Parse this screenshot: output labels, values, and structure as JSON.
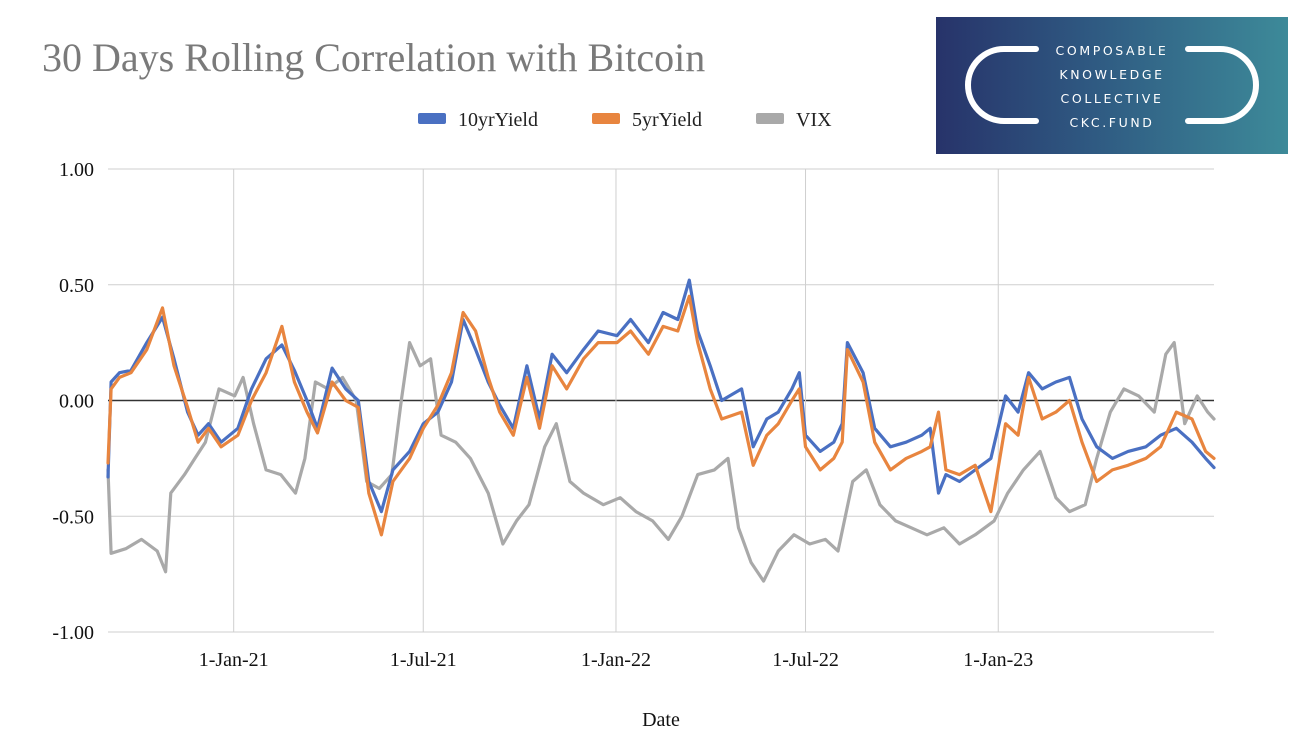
{
  "logo": {
    "lines": [
      "COMPOSABLE",
      "KNOWLEDGE",
      "COLLECTIVE",
      "CKC.FUND"
    ],
    "colors": [
      "#27336a",
      "#3d8a99"
    ]
  },
  "chart_data": {
    "type": "line",
    "title": "30 Days Rolling Correlation with Bitcoin",
    "xlabel": "Date",
    "ylabel": "",
    "ylim": [
      -1.0,
      1.0
    ],
    "yticks": [
      "1.00",
      "0.50",
      "0.00",
      "-0.50",
      "-1.00"
    ],
    "xlim": [
      "2020-09-03",
      "2023-07-26"
    ],
    "xticks": [
      {
        "date": "2021-01-01",
        "label": "1-Jan-21"
      },
      {
        "date": "2021-07-01",
        "label": "1-Jul-21"
      },
      {
        "date": "2022-01-01",
        "label": "1-Jan-22"
      },
      {
        "date": "2022-07-01",
        "label": "1-Jul-22"
      },
      {
        "date": "2023-01-01",
        "label": "1-Jan-23"
      }
    ],
    "grid": true,
    "legend_position": "top-center",
    "series": [
      {
        "name": "10yrYield",
        "color": "#4a70c2",
        "data": [
          [
            "2020-09-03",
            -0.33
          ],
          [
            "2020-09-06",
            0.08
          ],
          [
            "2020-09-14",
            0.12
          ],
          [
            "2020-09-25",
            0.13
          ],
          [
            "2020-10-10",
            0.25
          ],
          [
            "2020-10-25",
            0.36
          ],
          [
            "2020-11-05",
            0.18
          ],
          [
            "2020-11-18",
            -0.05
          ],
          [
            "2020-11-28",
            -0.15
          ],
          [
            "2020-12-08",
            -0.1
          ],
          [
            "2020-12-20",
            -0.18
          ],
          [
            "2021-01-05",
            -0.12
          ],
          [
            "2021-01-18",
            0.05
          ],
          [
            "2021-02-01",
            0.18
          ],
          [
            "2021-02-16",
            0.24
          ],
          [
            "2021-02-28",
            0.13
          ],
          [
            "2021-03-12",
            0.0
          ],
          [
            "2021-03-22",
            -0.12
          ],
          [
            "2021-04-05",
            0.14
          ],
          [
            "2021-04-18",
            0.05
          ],
          [
            "2021-04-30",
            0.0
          ],
          [
            "2021-05-10",
            -0.35
          ],
          [
            "2021-05-22",
            -0.48
          ],
          [
            "2021-06-02",
            -0.3
          ],
          [
            "2021-06-18",
            -0.22
          ],
          [
            "2021-07-01",
            -0.1
          ],
          [
            "2021-07-15",
            -0.05
          ],
          [
            "2021-07-28",
            0.08
          ],
          [
            "2021-08-08",
            0.35
          ],
          [
            "2021-08-20",
            0.22
          ],
          [
            "2021-09-01",
            0.08
          ],
          [
            "2021-09-12",
            -0.02
          ],
          [
            "2021-09-25",
            -0.12
          ],
          [
            "2021-10-08",
            0.15
          ],
          [
            "2021-10-20",
            -0.08
          ],
          [
            "2021-11-01",
            0.2
          ],
          [
            "2021-11-15",
            0.12
          ],
          [
            "2021-12-01",
            0.22
          ],
          [
            "2021-12-15",
            0.3
          ],
          [
            "2022-01-02",
            0.28
          ],
          [
            "2022-01-15",
            0.35
          ],
          [
            "2022-02-01",
            0.25
          ],
          [
            "2022-02-15",
            0.38
          ],
          [
            "2022-03-01",
            0.35
          ],
          [
            "2022-03-12",
            0.52
          ],
          [
            "2022-03-20",
            0.3
          ],
          [
            "2022-04-01",
            0.15
          ],
          [
            "2022-04-12",
            0.0
          ],
          [
            "2022-05-01",
            0.05
          ],
          [
            "2022-05-12",
            -0.2
          ],
          [
            "2022-05-25",
            -0.08
          ],
          [
            "2022-06-05",
            -0.05
          ],
          [
            "2022-06-18",
            0.05
          ],
          [
            "2022-06-25",
            0.12
          ],
          [
            "2022-07-01",
            -0.15
          ],
          [
            "2022-07-15",
            -0.22
          ],
          [
            "2022-07-28",
            -0.18
          ],
          [
            "2022-08-05",
            -0.1
          ],
          [
            "2022-08-10",
            0.25
          ],
          [
            "2022-08-25",
            0.12
          ],
          [
            "2022-09-05",
            -0.12
          ],
          [
            "2022-09-20",
            -0.2
          ],
          [
            "2022-10-05",
            -0.18
          ],
          [
            "2022-10-20",
            -0.15
          ],
          [
            "2022-10-28",
            -0.12
          ],
          [
            "2022-11-05",
            -0.4
          ],
          [
            "2022-11-12",
            -0.32
          ],
          [
            "2022-11-25",
            -0.35
          ],
          [
            "2022-12-10",
            -0.3
          ],
          [
            "2022-12-25",
            -0.25
          ],
          [
            "2023-01-08",
            0.02
          ],
          [
            "2023-01-20",
            -0.05
          ],
          [
            "2023-01-30",
            0.12
          ],
          [
            "2023-02-12",
            0.05
          ],
          [
            "2023-02-25",
            0.08
          ],
          [
            "2023-03-10",
            0.1
          ],
          [
            "2023-03-22",
            -0.08
          ],
          [
            "2023-04-05",
            -0.2
          ],
          [
            "2023-04-20",
            -0.25
          ],
          [
            "2023-05-05",
            -0.22
          ],
          [
            "2023-05-22",
            -0.2
          ],
          [
            "2023-06-05",
            -0.15
          ],
          [
            "2023-06-20",
            -0.12
          ],
          [
            "2023-07-05",
            -0.18
          ],
          [
            "2023-07-18",
            -0.25
          ],
          [
            "2023-07-26",
            -0.29
          ]
        ]
      },
      {
        "name": "5yrYield",
        "color": "#e8853f",
        "data": [
          [
            "2020-09-03",
            -0.27
          ],
          [
            "2020-09-06",
            0.05
          ],
          [
            "2020-09-14",
            0.1
          ],
          [
            "2020-09-25",
            0.12
          ],
          [
            "2020-10-10",
            0.22
          ],
          [
            "2020-10-25",
            0.4
          ],
          [
            "2020-11-05",
            0.15
          ],
          [
            "2020-11-18",
            -0.03
          ],
          [
            "2020-11-28",
            -0.18
          ],
          [
            "2020-12-08",
            -0.12
          ],
          [
            "2020-12-20",
            -0.2
          ],
          [
            "2021-01-05",
            -0.15
          ],
          [
            "2021-01-18",
            0.0
          ],
          [
            "2021-02-01",
            0.12
          ],
          [
            "2021-02-16",
            0.32
          ],
          [
            "2021-02-28",
            0.08
          ],
          [
            "2021-03-12",
            -0.05
          ],
          [
            "2021-03-22",
            -0.14
          ],
          [
            "2021-04-05",
            0.08
          ],
          [
            "2021-04-18",
            0.0
          ],
          [
            "2021-04-30",
            -0.03
          ],
          [
            "2021-05-10",
            -0.4
          ],
          [
            "2021-05-22",
            -0.58
          ],
          [
            "2021-06-02",
            -0.35
          ],
          [
            "2021-06-18",
            -0.25
          ],
          [
            "2021-07-01",
            -0.12
          ],
          [
            "2021-07-15",
            -0.02
          ],
          [
            "2021-07-28",
            0.12
          ],
          [
            "2021-08-08",
            0.38
          ],
          [
            "2021-08-20",
            0.3
          ],
          [
            "2021-09-01",
            0.1
          ],
          [
            "2021-09-12",
            -0.05
          ],
          [
            "2021-09-25",
            -0.15
          ],
          [
            "2021-10-08",
            0.1
          ],
          [
            "2021-10-20",
            -0.12
          ],
          [
            "2021-11-01",
            0.15
          ],
          [
            "2021-11-15",
            0.05
          ],
          [
            "2021-12-01",
            0.18
          ],
          [
            "2021-12-15",
            0.25
          ],
          [
            "2022-01-02",
            0.25
          ],
          [
            "2022-01-15",
            0.3
          ],
          [
            "2022-02-01",
            0.2
          ],
          [
            "2022-02-15",
            0.32
          ],
          [
            "2022-03-01",
            0.3
          ],
          [
            "2022-03-12",
            0.45
          ],
          [
            "2022-03-20",
            0.25
          ],
          [
            "2022-04-01",
            0.05
          ],
          [
            "2022-04-12",
            -0.08
          ],
          [
            "2022-05-01",
            -0.05
          ],
          [
            "2022-05-12",
            -0.28
          ],
          [
            "2022-05-25",
            -0.15
          ],
          [
            "2022-06-05",
            -0.1
          ],
          [
            "2022-06-18",
            0.0
          ],
          [
            "2022-06-25",
            0.05
          ],
          [
            "2022-07-01",
            -0.2
          ],
          [
            "2022-07-15",
            -0.3
          ],
          [
            "2022-07-28",
            -0.25
          ],
          [
            "2022-08-05",
            -0.18
          ],
          [
            "2022-08-10",
            0.22
          ],
          [
            "2022-08-25",
            0.08
          ],
          [
            "2022-09-05",
            -0.18
          ],
          [
            "2022-09-20",
            -0.3
          ],
          [
            "2022-10-05",
            -0.25
          ],
          [
            "2022-10-20",
            -0.22
          ],
          [
            "2022-10-28",
            -0.2
          ],
          [
            "2022-11-05",
            -0.05
          ],
          [
            "2022-11-12",
            -0.3
          ],
          [
            "2022-11-25",
            -0.32
          ],
          [
            "2022-12-10",
            -0.28
          ],
          [
            "2022-12-25",
            -0.48
          ],
          [
            "2023-01-08",
            -0.1
          ],
          [
            "2023-01-20",
            -0.15
          ],
          [
            "2023-01-30",
            0.1
          ],
          [
            "2023-02-12",
            -0.08
          ],
          [
            "2023-02-25",
            -0.05
          ],
          [
            "2023-03-10",
            0.0
          ],
          [
            "2023-03-22",
            -0.18
          ],
          [
            "2023-04-05",
            -0.35
          ],
          [
            "2023-04-20",
            -0.3
          ],
          [
            "2023-05-05",
            -0.28
          ],
          [
            "2023-05-22",
            -0.25
          ],
          [
            "2023-06-05",
            -0.2
          ],
          [
            "2023-06-20",
            -0.05
          ],
          [
            "2023-07-05",
            -0.08
          ],
          [
            "2023-07-18",
            -0.22
          ],
          [
            "2023-07-26",
            -0.25
          ]
        ]
      },
      {
        "name": "VIX",
        "color": "#a9a9a9",
        "data": [
          [
            "2020-09-03",
            -0.3
          ],
          [
            "2020-09-06",
            -0.66
          ],
          [
            "2020-09-20",
            -0.64
          ],
          [
            "2020-10-05",
            -0.6
          ],
          [
            "2020-10-20",
            -0.65
          ],
          [
            "2020-10-28",
            -0.74
          ],
          [
            "2020-11-02",
            -0.4
          ],
          [
            "2020-11-15",
            -0.32
          ],
          [
            "2020-11-25",
            -0.25
          ],
          [
            "2020-12-05",
            -0.18
          ],
          [
            "2020-12-18",
            0.05
          ],
          [
            "2021-01-02",
            0.02
          ],
          [
            "2021-01-10",
            0.1
          ],
          [
            "2021-01-20",
            -0.1
          ],
          [
            "2021-02-01",
            -0.3
          ],
          [
            "2021-02-15",
            -0.32
          ],
          [
            "2021-03-01",
            -0.4
          ],
          [
            "2021-03-10",
            -0.25
          ],
          [
            "2021-03-20",
            0.08
          ],
          [
            "2021-04-01",
            0.05
          ],
          [
            "2021-04-15",
            0.1
          ],
          [
            "2021-04-28",
            0.0
          ],
          [
            "2021-05-08",
            -0.35
          ],
          [
            "2021-05-20",
            -0.38
          ],
          [
            "2021-06-01",
            -0.32
          ],
          [
            "2021-06-10",
            0.0
          ],
          [
            "2021-06-18",
            0.25
          ],
          [
            "2021-06-28",
            0.15
          ],
          [
            "2021-07-08",
            0.18
          ],
          [
            "2021-07-18",
            -0.15
          ],
          [
            "2021-08-01",
            -0.18
          ],
          [
            "2021-08-15",
            -0.25
          ],
          [
            "2021-09-01",
            -0.4
          ],
          [
            "2021-09-15",
            -0.62
          ],
          [
            "2021-09-28",
            -0.52
          ],
          [
            "2021-10-10",
            -0.45
          ],
          [
            "2021-10-25",
            -0.2
          ],
          [
            "2021-11-05",
            -0.1
          ],
          [
            "2021-11-18",
            -0.35
          ],
          [
            "2021-12-01",
            -0.4
          ],
          [
            "2021-12-20",
            -0.45
          ],
          [
            "2022-01-05",
            -0.42
          ],
          [
            "2022-01-20",
            -0.48
          ],
          [
            "2022-02-05",
            -0.52
          ],
          [
            "2022-02-20",
            -0.6
          ],
          [
            "2022-03-05",
            -0.5
          ],
          [
            "2022-03-20",
            -0.32
          ],
          [
            "2022-04-05",
            -0.3
          ],
          [
            "2022-04-18",
            -0.25
          ],
          [
            "2022-04-28",
            -0.55
          ],
          [
            "2022-05-10",
            -0.7
          ],
          [
            "2022-05-22",
            -0.78
          ],
          [
            "2022-06-05",
            -0.65
          ],
          [
            "2022-06-20",
            -0.58
          ],
          [
            "2022-07-05",
            -0.62
          ],
          [
            "2022-07-20",
            -0.6
          ],
          [
            "2022-08-01",
            -0.65
          ],
          [
            "2022-08-15",
            -0.35
          ],
          [
            "2022-08-28",
            -0.3
          ],
          [
            "2022-09-10",
            -0.45
          ],
          [
            "2022-09-25",
            -0.52
          ],
          [
            "2022-10-10",
            -0.55
          ],
          [
            "2022-10-25",
            -0.58
          ],
          [
            "2022-11-10",
            -0.55
          ],
          [
            "2022-11-25",
            -0.62
          ],
          [
            "2022-12-10",
            -0.58
          ],
          [
            "2022-12-28",
            -0.52
          ],
          [
            "2023-01-10",
            -0.4
          ],
          [
            "2023-01-25",
            -0.3
          ],
          [
            "2023-02-10",
            -0.22
          ],
          [
            "2023-02-25",
            -0.42
          ],
          [
            "2023-03-10",
            -0.48
          ],
          [
            "2023-03-25",
            -0.45
          ],
          [
            "2023-04-05",
            -0.25
          ],
          [
            "2023-04-18",
            -0.05
          ],
          [
            "2023-05-01",
            0.05
          ],
          [
            "2023-05-15",
            0.02
          ],
          [
            "2023-05-30",
            -0.05
          ],
          [
            "2023-06-10",
            0.2
          ],
          [
            "2023-06-18",
            0.25
          ],
          [
            "2023-06-28",
            -0.1
          ],
          [
            "2023-07-10",
            0.02
          ],
          [
            "2023-07-20",
            -0.05
          ],
          [
            "2023-07-26",
            -0.08
          ]
        ]
      }
    ]
  }
}
